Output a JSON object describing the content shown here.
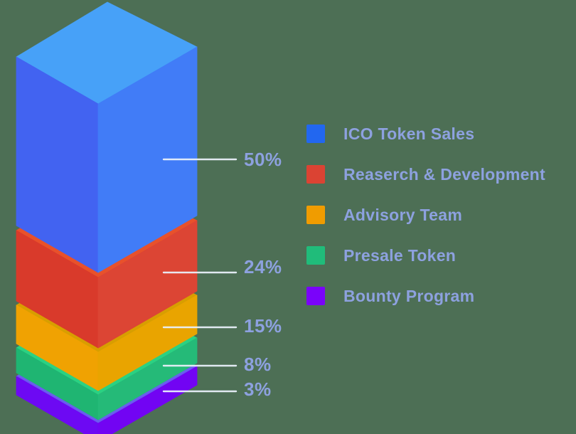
{
  "background_color": "#4d6f55",
  "text_color": "#8da1df",
  "line_color": "#e9f0fa",
  "chart_data": {
    "type": "stacked-bar-3d",
    "title": "",
    "unit": "%",
    "total": 100,
    "legend_position": "right",
    "segments": [
      {
        "label": "ICO Token Sales",
        "value": 50,
        "display": "50%",
        "legend_color": "#2267f0",
        "face_top": "#47a1f8",
        "face_left": "#4263f1",
        "face_right": "#417cf7"
      },
      {
        "label": "Reaserch & Development",
        "value": 24,
        "display": "24%",
        "legend_color": "#db4333",
        "face_top": "#e8512b",
        "face_left": "#d93a2b",
        "face_right": "#dc4534"
      },
      {
        "label": "Advisory Team",
        "value": 15,
        "display": "15%",
        "legend_color": "#f09c00",
        "face_top": "#d89e00",
        "face_left": "#f0a202",
        "face_right": "#e9a400"
      },
      {
        "label": "Presale Token",
        "value": 8,
        "display": "8%",
        "legend_color": "#20bc7a",
        "face_top": "#2bd182",
        "face_left": "#1fb572",
        "face_right": "#25ba78"
      },
      {
        "label": "Bounty Program",
        "value": 3,
        "display": "3%",
        "legend_color": "#7a03fa",
        "face_top": "#6a5cef",
        "face_left": "#6d09f3",
        "face_right": "#7204f3"
      }
    ]
  }
}
